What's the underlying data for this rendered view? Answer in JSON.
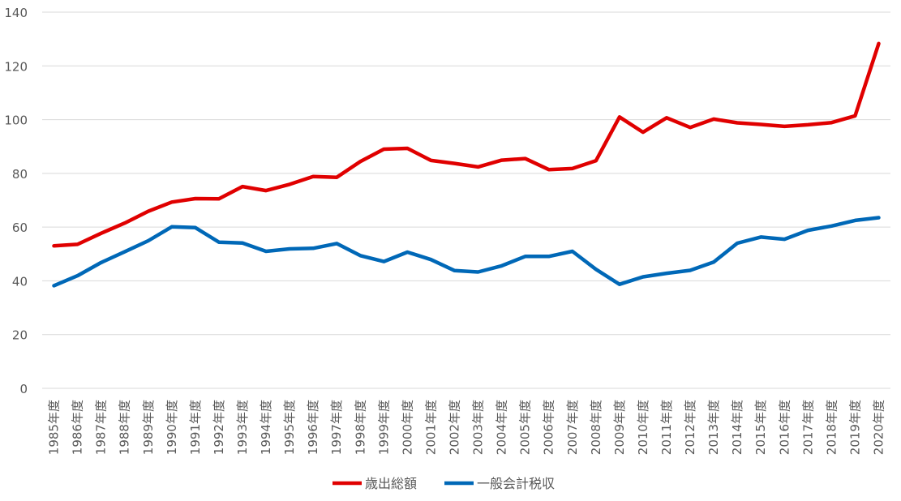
{
  "chart_data": {
    "type": "line",
    "categories": [
      "1985年度",
      "1986年度",
      "1987年度",
      "1988年度",
      "1989年度",
      "1990年度",
      "1991年度",
      "1992年度",
      "1993年度",
      "1994年度",
      "1995年度",
      "1996年度",
      "1997年度",
      "1998年度",
      "1999年度",
      "2000年度",
      "2001年度",
      "2002年度",
      "2003年度",
      "2004年度",
      "2005年度",
      "2006年度",
      "2007年度",
      "2008年度",
      "2009年度",
      "2010年度",
      "2011年度",
      "2012年度",
      "2013年度",
      "2014年度",
      "2015年度",
      "2016年度",
      "2017年度",
      "2018年度",
      "2019年度",
      "2020年度"
    ],
    "series": [
      {
        "name": "歳出総額",
        "color": "#e00000",
        "values": [
          53.0,
          53.6,
          57.7,
          61.5,
          65.9,
          69.3,
          70.6,
          70.5,
          75.1,
          73.6,
          75.9,
          78.8,
          78.5,
          84.4,
          89.0,
          89.3,
          84.8,
          83.7,
          82.4,
          84.9,
          85.5,
          81.4,
          81.8,
          84.7,
          101.0,
          95.3,
          100.7,
          97.1,
          100.2,
          98.8,
          98.2,
          97.5,
          98.1,
          98.9,
          101.4,
          128.3
        ]
      },
      {
        "name": "一般会計税収",
        "color": "#0068b7",
        "values": [
          38.2,
          41.9,
          46.8,
          50.8,
          54.9,
          60.1,
          59.8,
          54.4,
          54.1,
          51.0,
          51.9,
          52.1,
          53.9,
          49.4,
          47.2,
          50.7,
          47.9,
          43.8,
          43.3,
          45.6,
          49.1,
          49.1,
          51.0,
          44.3,
          38.7,
          41.5,
          42.8,
          43.9,
          47.0,
          54.0,
          56.3,
          55.5,
          58.8,
          60.4,
          62.5,
          63.5
        ]
      }
    ],
    "yTicks": [
      "0",
      "20",
      "40",
      "60",
      "80",
      "100",
      "120",
      "140"
    ],
    "ylim": [
      0,
      140
    ],
    "grid": true,
    "legend": "bottom"
  }
}
